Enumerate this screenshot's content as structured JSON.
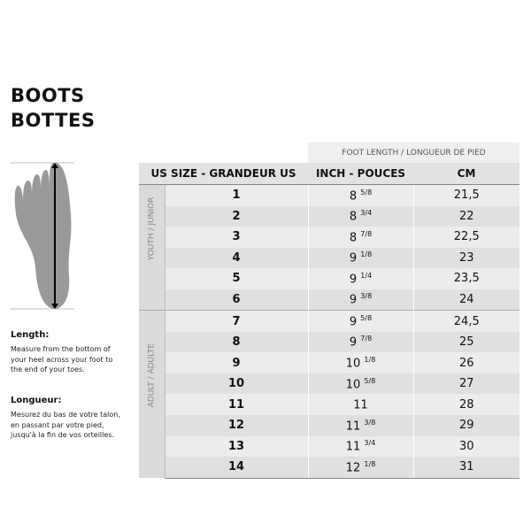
{
  "title": {
    "line1": "BOOTS",
    "line2": "BOTTES"
  },
  "instructions": {
    "en_heading": "Length:",
    "en_text": "Measure from the bottom of your heel across your foot to the end of your toes.",
    "fr_heading": "Longueur:",
    "fr_text": "Mesurez du bas de votre talon, en passant par votre pied, jusqu'à la fin de vos orteilles."
  },
  "table": {
    "group_header": "FOOT LENGTH / LONGUEUR DE PIED",
    "columns": [
      "US SIZE - GRANDEUR US",
      "INCH - POUCES",
      "CM"
    ],
    "groups": [
      "YOUTH / JUNIOR",
      "ADULT / ADULTE"
    ],
    "rows": [
      {
        "size": "1",
        "inch": "8",
        "frac": "5/8",
        "cm": "21,5"
      },
      {
        "size": "2",
        "inch": "8",
        "frac": "3/4",
        "cm": "22"
      },
      {
        "size": "3",
        "inch": "8",
        "frac": "7/8",
        "cm": "22,5"
      },
      {
        "size": "4",
        "inch": "9",
        "frac": "1/8",
        "cm": "23"
      },
      {
        "size": "5",
        "inch": "9",
        "frac": "1/4",
        "cm": "23,5"
      },
      {
        "size": "6",
        "inch": "9",
        "frac": "3/8",
        "cm": "24"
      },
      {
        "size": "7",
        "inch": "9",
        "frac": "5/8",
        "cm": "24,5"
      },
      {
        "size": "8",
        "inch": "9",
        "frac": "7/8",
        "cm": "25"
      },
      {
        "size": "9",
        "inch": "10",
        "frac": "1/8",
        "cm": "26"
      },
      {
        "size": "10",
        "inch": "10",
        "frac": "5/8",
        "cm": "27"
      },
      {
        "size": "11",
        "inch": "11",
        "frac": "",
        "cm": "28"
      },
      {
        "size": "12",
        "inch": "11",
        "frac": "3/8",
        "cm": "29"
      },
      {
        "size": "13",
        "inch": "11",
        "frac": "3/4",
        "cm": "30"
      },
      {
        "size": "14",
        "inch": "12",
        "frac": "1/8",
        "cm": "31"
      }
    ]
  }
}
